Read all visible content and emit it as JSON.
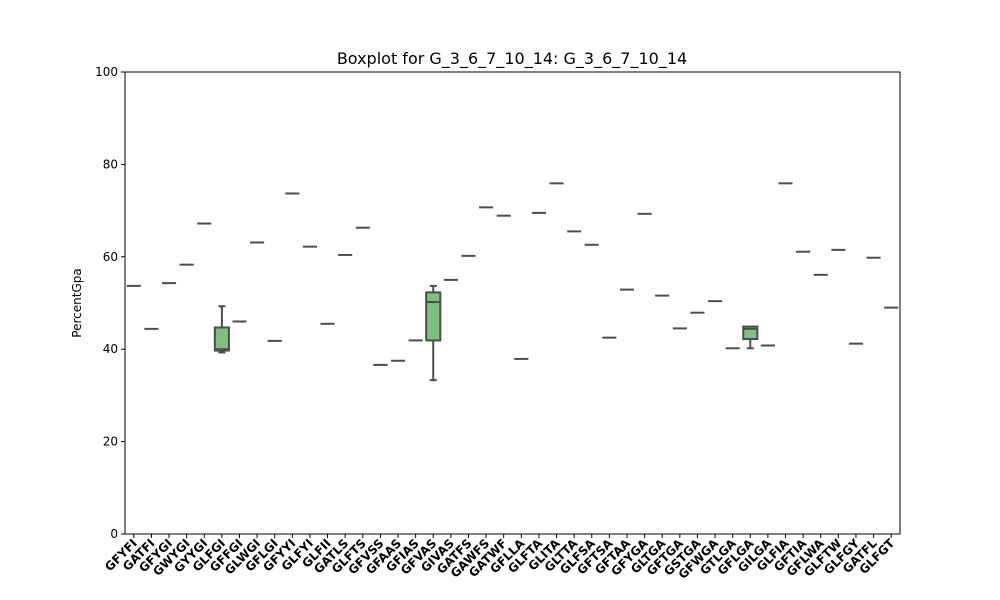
{
  "chart_data": {
    "type": "boxplot",
    "title": "Boxplot for G_3_6_7_10_14: G_3_6_7_10_14",
    "xlabel": "",
    "ylabel": "PercentGpa",
    "ylim": [
      0,
      100
    ],
    "yticks": [
      0,
      20,
      40,
      60,
      80,
      100
    ],
    "grid": false,
    "box_color": "#7fbf7f",
    "line_color": "#4d4d4d",
    "categories": [
      "GFYFI",
      "GATFI",
      "GFYGI",
      "GWYGI",
      "GYYGI",
      "GLFGI",
      "GFFGI",
      "GLWGI",
      "GFLGI",
      "GFYYI",
      "GLFYI",
      "GLFII",
      "GATLS",
      "GLFTS",
      "GFVSS",
      "GFAAS",
      "GFIAS",
      "GFVAS",
      "GIVAS",
      "GATFS",
      "GAWFS",
      "GATWF",
      "GFLLA",
      "GLFTA",
      "GLITA",
      "GLTTA",
      "GLFSA",
      "GFTSA",
      "GFTAA",
      "GFYGA",
      "GLTGA",
      "GFTGA",
      "GSTGA",
      "GFWGA",
      "GTLGA",
      "GFLGA",
      "GILGA",
      "GLFIA",
      "GFTIA",
      "GFLWA",
      "GLFTW",
      "GLFGY",
      "GATFL",
      "GLFGT"
    ],
    "series": [
      {
        "category": "GFYFI",
        "value": 53.7
      },
      {
        "category": "GATFI",
        "value": 44.4
      },
      {
        "category": "GFYGI",
        "value": 54.3
      },
      {
        "category": "GWYGI",
        "value": 58.3
      },
      {
        "category": "GYYGI",
        "value": 67.2
      },
      {
        "category": "GLFGI",
        "box": {
          "min": 39.3,
          "q1": 39.7,
          "median": 40.0,
          "q3": 44.7,
          "max": 49.3
        }
      },
      {
        "category": "GFFGI",
        "value": 46.0
      },
      {
        "category": "GLWGI",
        "value": 63.1
      },
      {
        "category": "GFLGI",
        "value": 41.8
      },
      {
        "category": "GFYYI",
        "value": 73.7
      },
      {
        "category": "GLFYI",
        "value": 62.2
      },
      {
        "category": "GLFII",
        "value": 45.5
      },
      {
        "category": "GATLS",
        "value": 60.4
      },
      {
        "category": "GLFTS",
        "value": 66.3
      },
      {
        "category": "GFVSS",
        "value": 36.6
      },
      {
        "category": "GFAAS",
        "value": 37.5
      },
      {
        "category": "GFIAS",
        "value": 41.9
      },
      {
        "category": "GFVAS",
        "box": {
          "min": 33.3,
          "q1": 41.9,
          "median": 50.2,
          "q3": 52.3,
          "max": 53.7
        }
      },
      {
        "category": "GIVAS",
        "value": 55.0
      },
      {
        "category": "GATFS",
        "value": 60.2
      },
      {
        "category": "GAWFS",
        "value": 70.7
      },
      {
        "category": "GATWF",
        "value": 68.9
      },
      {
        "category": "GFLLA",
        "value": 37.9
      },
      {
        "category": "GLFTA",
        "value": 69.5
      },
      {
        "category": "GLITA",
        "value": 75.9
      },
      {
        "category": "GLTTA",
        "value": 65.5
      },
      {
        "category": "GLFSA",
        "value": 62.6
      },
      {
        "category": "GFTSA",
        "value": 42.5
      },
      {
        "category": "GFTAA",
        "value": 52.9
      },
      {
        "category": "GFYGA",
        "value": 69.3
      },
      {
        "category": "GLTGA",
        "value": 51.6
      },
      {
        "category": "GFTGA",
        "value": 44.5
      },
      {
        "category": "GSTGA",
        "value": 47.9
      },
      {
        "category": "GFWGA",
        "value": 50.4
      },
      {
        "category": "GTLGA",
        "value": 40.2
      },
      {
        "category": "GFLGA",
        "box": {
          "min": 40.2,
          "q1": 42.2,
          "median": 44.4,
          "q3": 44.9,
          "max": 44.9
        }
      },
      {
        "category": "GILGA",
        "value": 40.8
      },
      {
        "category": "GLFIA",
        "value": 75.9
      },
      {
        "category": "GFTIA",
        "value": 61.1
      },
      {
        "category": "GFLWA",
        "value": 56.1
      },
      {
        "category": "GLFTW",
        "value": 61.5
      },
      {
        "category": "GLFGY",
        "value": 41.2
      },
      {
        "category": "GATFL",
        "value": 59.8
      },
      {
        "category": "GLFGT",
        "value": 49.0
      }
    ]
  }
}
